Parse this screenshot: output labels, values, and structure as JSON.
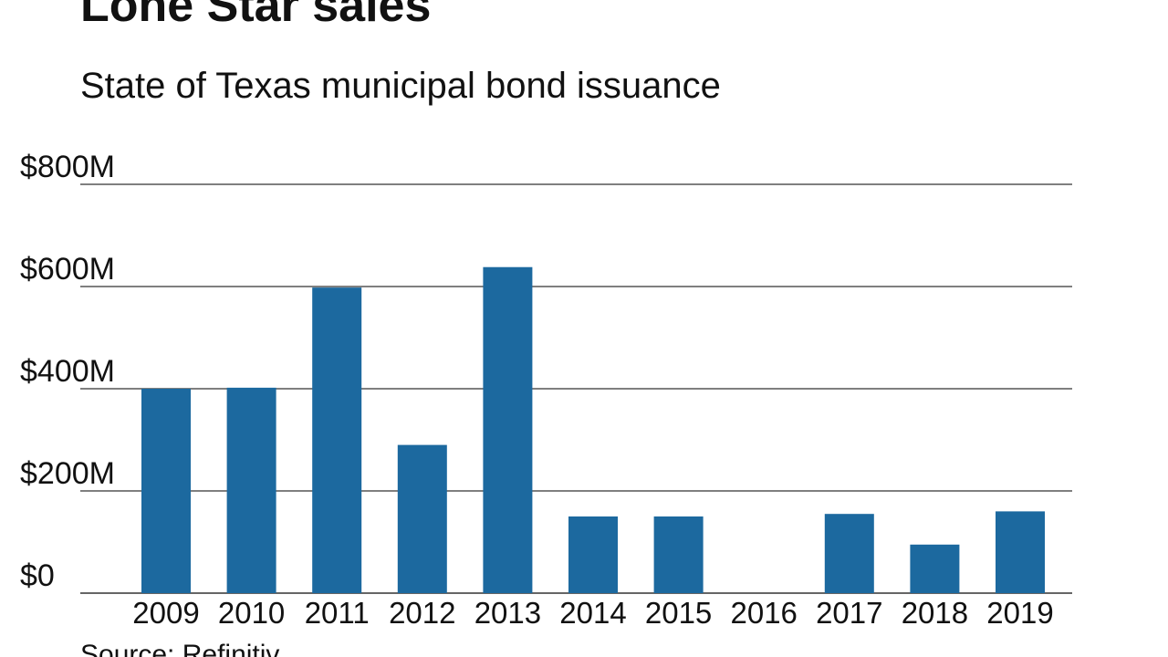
{
  "header": {
    "title": "Lone Star sales",
    "subtitle": "State of Texas municipal bond issuance"
  },
  "footer": {
    "source": "Source: Refinitiv"
  },
  "colors": {
    "bar": "#1c699f",
    "gridline": "#333333",
    "text": "#111111"
  },
  "chart_data": {
    "type": "bar",
    "title": "Lone Star sales",
    "subtitle": "State of Texas municipal bond issuance",
    "xlabel": "",
    "ylabel": "",
    "categories": [
      "2009",
      "2010",
      "2011",
      "2012",
      "2013",
      "2014",
      "2015",
      "2016",
      "2017",
      "2018",
      "2019"
    ],
    "values": [
      400,
      402,
      598,
      290,
      638,
      150,
      150,
      0,
      155,
      95,
      160
    ],
    "unit": "$M",
    "ylim": [
      0,
      800
    ],
    "yticks": [
      0,
      200,
      400,
      600,
      800
    ],
    "ytick_labels": [
      "$0",
      "$200M",
      "$400M",
      "$600M",
      "$800M"
    ],
    "grid": true,
    "legend": "none"
  }
}
